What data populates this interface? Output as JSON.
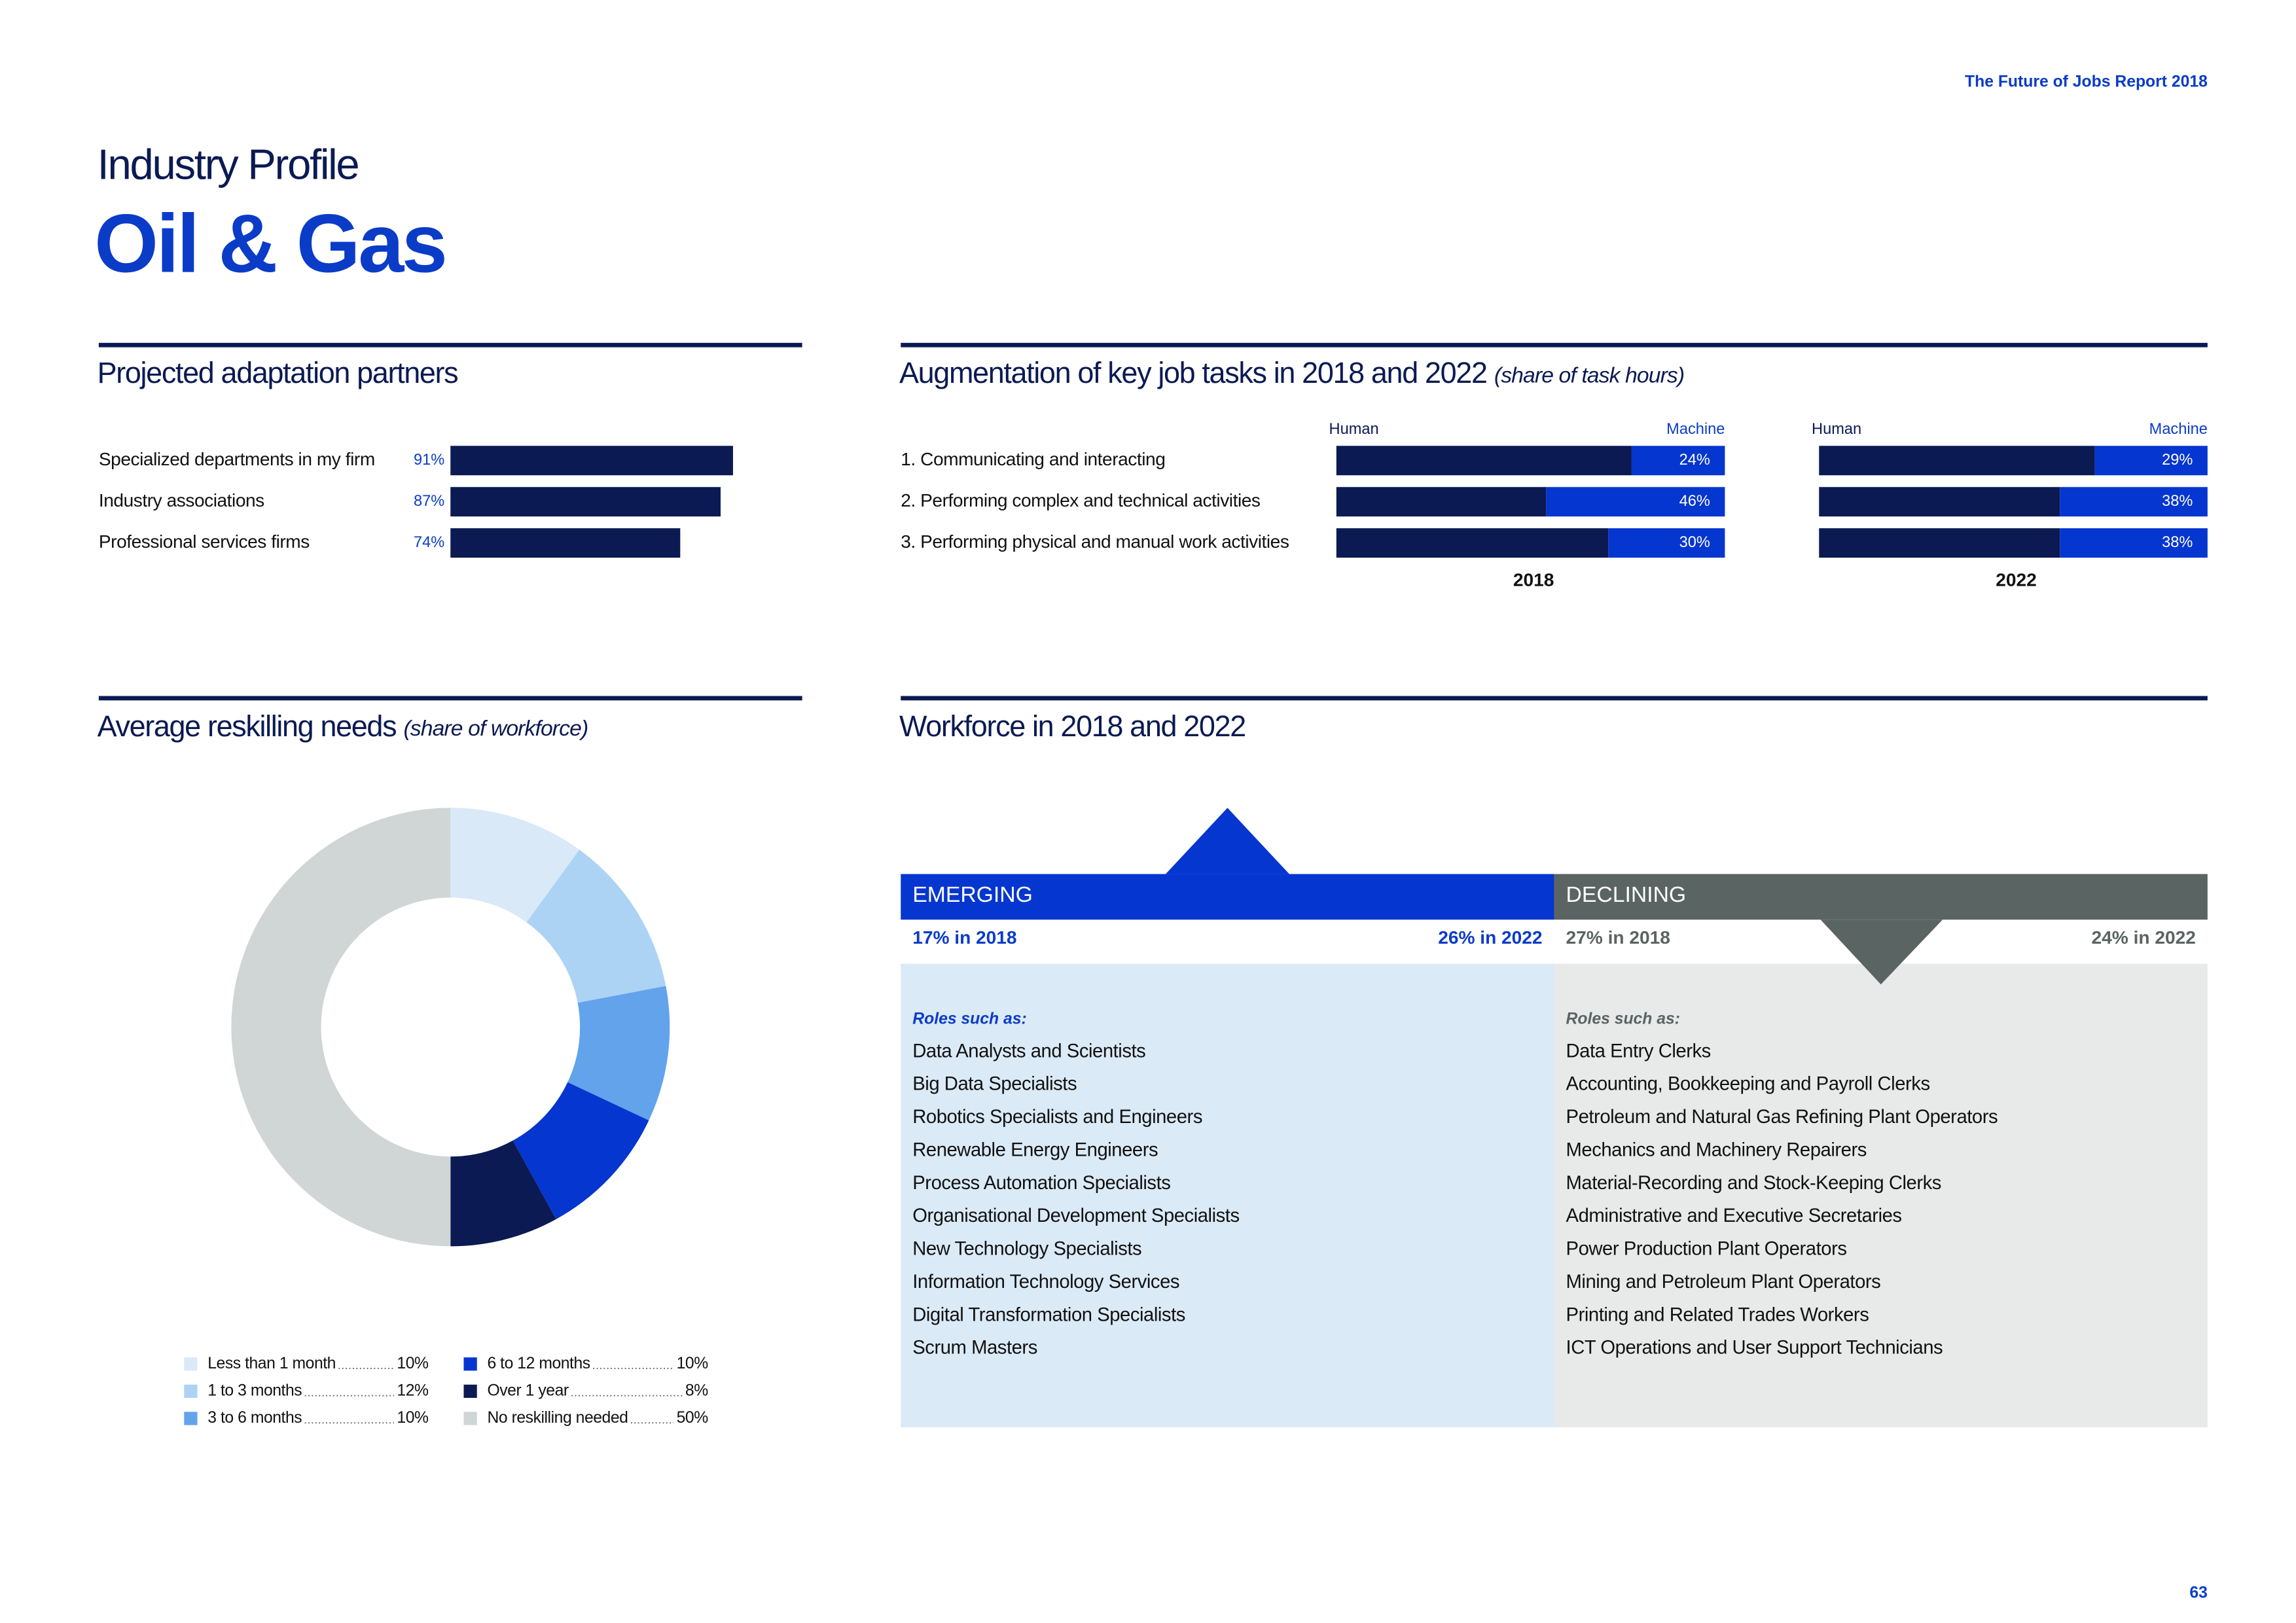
{
  "header": "The Future of Jobs Report 2018",
  "kicker": "Industry Profile",
  "title": "Oil & Gas",
  "page_number": "63",
  "chart_data": [
    {
      "type": "hbar",
      "title": "Projected adaptation partners",
      "categories": [
        "Specialized departments in my firm",
        "Industry associations",
        "Professional services firms"
      ],
      "values": [
        91,
        87,
        74
      ],
      "value_labels": [
        "91%",
        "87%",
        "74%"
      ],
      "color": "#0b1a52"
    },
    {
      "type": "stacked_hbar",
      "title": "Augmentation of key job tasks in 2018 and 2022",
      "subtitle": "(share of task hours)",
      "categories": [
        "1.  Communicating and interacting",
        "2.  Performing complex and technical activities",
        "3.  Performing physical and manual work activities"
      ],
      "panels": [
        {
          "label": "2018",
          "series": [
            {
              "name": "Human",
              "color": "#0b1a52",
              "values": [
                76,
                54,
                70
              ]
            },
            {
              "name": "Machine",
              "color": "#0536d0",
              "values": [
                24,
                46,
                30
              ],
              "value_labels": [
                "24%",
                "46%",
                "30%"
              ]
            }
          ]
        },
        {
          "label": "2022",
          "series": [
            {
              "name": "Human",
              "color": "#0b1a52",
              "values": [
                71,
                62,
                62
              ]
            },
            {
              "name": "Machine",
              "color": "#0536d0",
              "values": [
                29,
                38,
                38
              ],
              "value_labels": [
                "29%",
                "38%",
                "38%"
              ]
            }
          ]
        }
      ]
    },
    {
      "type": "donut",
      "title": "Average reskilling needs",
      "subtitle": "(share of workforce)",
      "categories": [
        "Less than 1 month",
        "1 to 3 months",
        "3 to 6 months",
        "6 to 12 months",
        "Over 1 year",
        "No reskilling needed"
      ],
      "values": [
        10,
        12,
        10,
        10,
        8,
        50
      ],
      "value_labels": [
        "10%",
        "12%",
        "10%",
        "10%",
        "8%",
        "50%"
      ],
      "colors": [
        "#d9e9f8",
        "#acd3f4",
        "#62a3ec",
        "#0536d0",
        "#0b1a52",
        "#d0d5d6"
      ]
    }
  ],
  "workforce": {
    "title": "Workforce in 2018 and 2022",
    "emerging": {
      "label": "EMERGING",
      "start": "17% in 2018",
      "end": "26% in 2022",
      "roles_heading": "Roles such as:",
      "roles": [
        "Data Analysts and Scientists",
        "Big Data Specialists",
        "Robotics Specialists and Engineers",
        "Renewable Energy Engineers",
        "Process Automation Specialists",
        "Organisational Development Specialists",
        "New Technology Specialists",
        "Information Technology Services",
        "Digital Transformation Specialists",
        "Scrum Masters"
      ]
    },
    "declining": {
      "label": "DECLINING",
      "start": "27% in 2018",
      "end": "24% in 2022",
      "roles_heading": "Roles such as:",
      "roles": [
        "Data Entry Clerks",
        "Accounting,  Bookkeeping and Payroll Clerks",
        "Petroleum and Natural Gas Refining Plant Operators",
        "Mechanics and Machinery Repairers",
        "Material-Recording and Stock-Keeping Clerks",
        "Administrative and Executive Secretaries",
        "Power Production Plant Operators",
        "Mining and Petroleum Plant Operators",
        "Printing and Related Trades Workers",
        "ICT Operations and User Support Technicians"
      ]
    }
  }
}
